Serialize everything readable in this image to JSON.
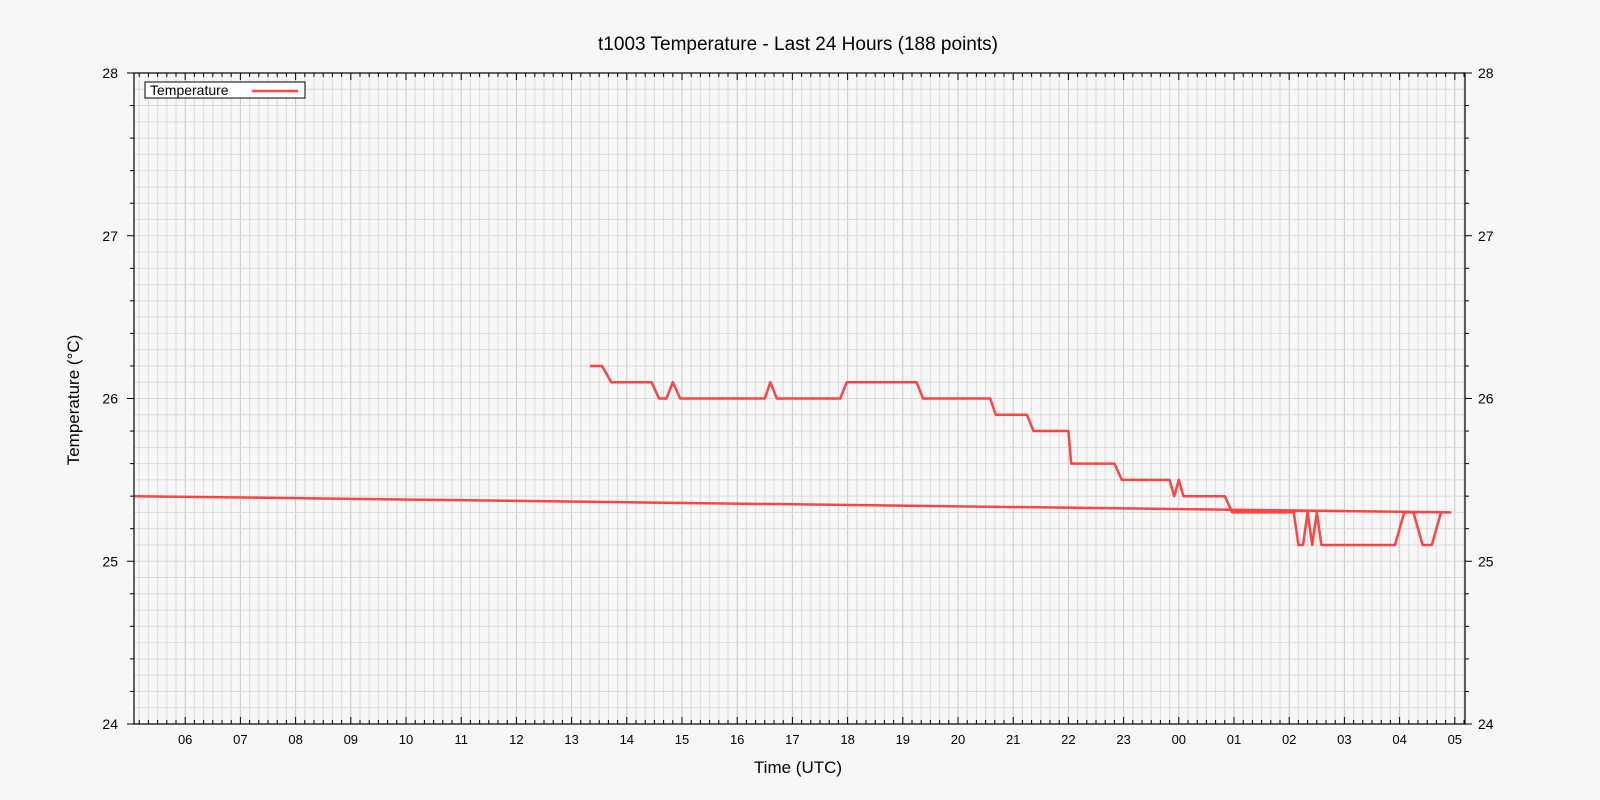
{
  "chart_data": {
    "type": "line",
    "title": "t1003 Temperature - Last 24 Hours (188 points)",
    "xlabel": "Time (UTC)",
    "ylabel": "Temperature (°C)",
    "ylim": [
      24,
      28
    ],
    "xlim": [
      "05:00",
      "05:05 (+1 day)"
    ],
    "x_tick_labels": [
      "06",
      "07",
      "08",
      "09",
      "10",
      "11",
      "12",
      "13",
      "14",
      "15",
      "16",
      "17",
      "18",
      "19",
      "20",
      "21",
      "22",
      "23",
      "00",
      "01",
      "02",
      "03",
      "04",
      "05"
    ],
    "y_tick_labels": [
      "24",
      "25",
      "26",
      "27",
      "28"
    ],
    "grid": true,
    "legend_position": "top-left",
    "line_color": "#ff4444",
    "series": [
      {
        "name": "Temperature",
        "x": [
          "13:20",
          "13:33",
          "13:43",
          "14:20",
          "14:27",
          "14:35",
          "14:43",
          "14:50",
          "14:58",
          "15:20",
          "16:00",
          "16:30",
          "16:36",
          "16:43",
          "16:50",
          "17:00",
          "17:30",
          "17:52",
          "17:59",
          "18:20",
          "19:00",
          "19:15",
          "19:22",
          "20:00",
          "20:35",
          "20:41",
          "21:00",
          "21:15",
          "21:22",
          "22:00",
          "22:03",
          "22:10",
          "22:50",
          "22:58",
          "23:50",
          "23:55",
          "00:00",
          "00:05",
          "00:10",
          "00:50",
          "00:58",
          "01:30",
          "02:05",
          "02:10",
          "02:15",
          "02:20",
          "02:25",
          "02:30",
          "02:35",
          "02:42",
          "03:00",
          "03:55",
          "04:05",
          "04:15",
          "04:25",
          "04:35",
          "04:45",
          "04:55",
          "05:05"
        ],
        "y": [
          26.2,
          26.2,
          26.1,
          26.1,
          26.1,
          26.0,
          26.0,
          26.1,
          26.0,
          26.0,
          26.0,
          26.0,
          26.1,
          26.0,
          26.0,
          26.0,
          26.0,
          26.0,
          26.1,
          26.1,
          26.1,
          26.1,
          26.0,
          26.0,
          26.0,
          25.9,
          25.9,
          25.9,
          25.8,
          25.8,
          25.6,
          25.6,
          25.6,
          25.5,
          25.5,
          25.4,
          25.5,
          25.4,
          25.4,
          25.4,
          25.3,
          25.3,
          25.3,
          25.1,
          25.1,
          25.3,
          25.1,
          25.3,
          25.1,
          25.1,
          25.1,
          25.1,
          25.3,
          25.3,
          25.1,
          25.1,
          25.3,
          25.3,
          25.4
        ]
      }
    ]
  },
  "legend": {
    "label": "Temperature"
  }
}
